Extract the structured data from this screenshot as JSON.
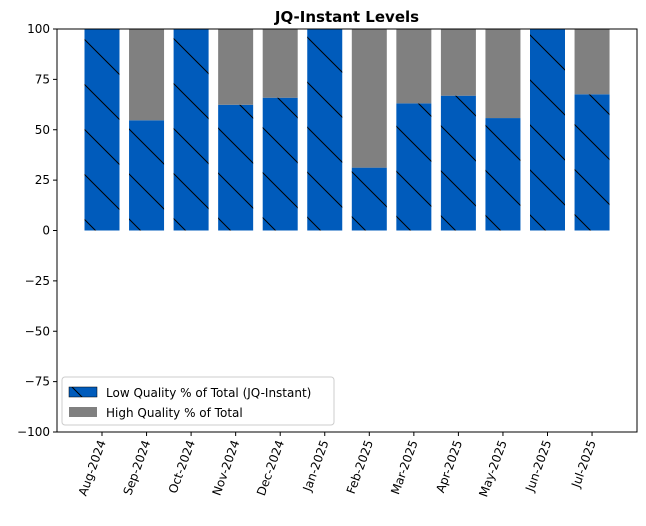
{
  "chart_data": {
    "type": "bar",
    "stacked": true,
    "title": "JQ-Instant Levels",
    "xlabel": "",
    "ylabel": "",
    "ylim": [
      -100,
      100
    ],
    "yticks": [
      100,
      75,
      50,
      25,
      0,
      -25,
      -50,
      -75,
      -100
    ],
    "grid": false,
    "legend_position": "lower-left",
    "categories": [
      "Aug-2024",
      "Sep-2024",
      "Oct-2024",
      "Nov-2024",
      "Dec-2024",
      "Jan-2025",
      "Feb-2025",
      "Mar-2025",
      "Apr-2025",
      "May-2025",
      "Jun-2025",
      "Jul-2025"
    ],
    "series": [
      {
        "name": "Low Quality % of Total (JQ-Instant)",
        "color": "#005bbb",
        "hatch": "\\",
        "values": [
          100,
          54.7,
          100,
          62.4,
          65.9,
          100,
          31.2,
          63.1,
          66.9,
          55.8,
          100,
          67.6
        ]
      },
      {
        "name": "High Quality % of Total",
        "color": "#808080",
        "values": [
          0,
          45.3,
          0,
          37.6,
          34.1,
          0,
          68.8,
          36.9,
          33.1,
          44.2,
          0,
          32.4
        ]
      }
    ]
  }
}
